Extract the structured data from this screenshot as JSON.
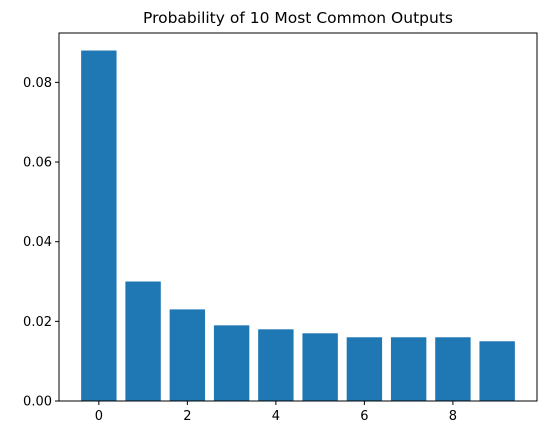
{
  "chart_data": {
    "type": "bar",
    "title": "Probability of 10 Most Common Outputs",
    "xlabel": "",
    "ylabel": "",
    "categories": [
      0,
      1,
      2,
      3,
      4,
      5,
      6,
      7,
      8,
      9
    ],
    "values": [
      0.088,
      0.03,
      0.023,
      0.019,
      0.018,
      0.017,
      0.016,
      0.016,
      0.016,
      0.015
    ],
    "xlim": [
      -0.9,
      9.9
    ],
    "ylim": [
      0,
      0.0924
    ],
    "xticks": [
      0,
      2,
      4,
      6,
      8
    ],
    "xtick_labels": [
      "0",
      "2",
      "4",
      "6",
      "8"
    ],
    "yticks": [
      0,
      0.02,
      0.04,
      0.06,
      0.08
    ],
    "ytick_labels": [
      "0.00",
      "0.02",
      "0.04",
      "0.06",
      "0.08"
    ],
    "bar_color": "#1f77b4",
    "grid": false,
    "legend": "none"
  }
}
